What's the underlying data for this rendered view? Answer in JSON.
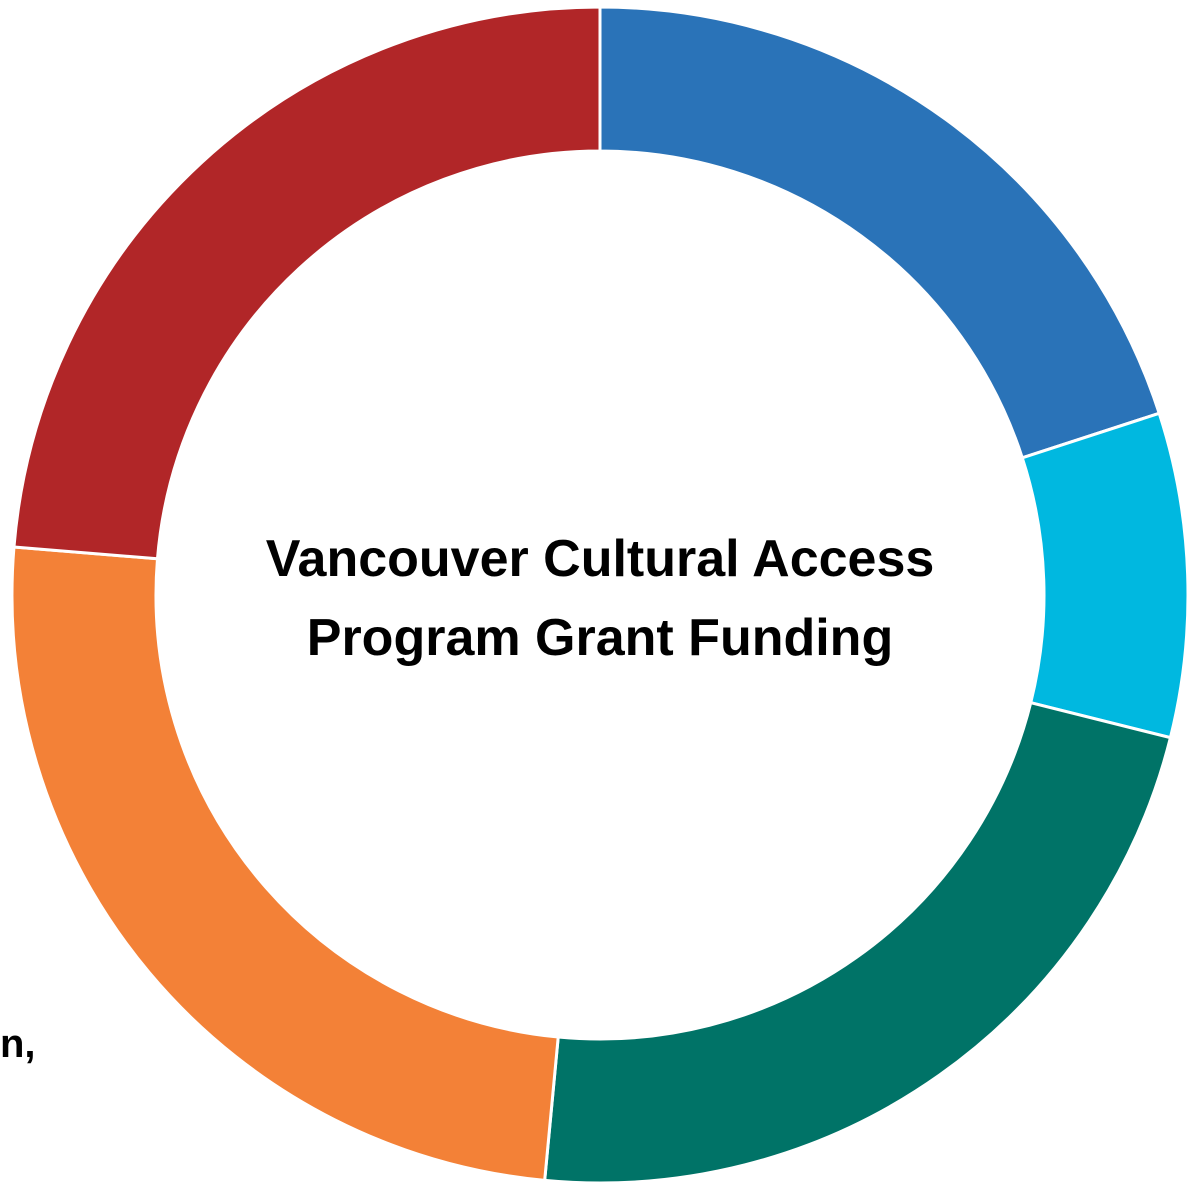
{
  "chart_data": {
    "type": "pie",
    "variant": "donut",
    "title": "Vancouver Cultural Access Program Grant Funding",
    "title_lines": [
      "Vancouver Cultural Access",
      "Program Grant Funding"
    ],
    "categories": [
      "",
      "",
      "",
      "",
      ""
    ],
    "values": [
      20.0,
      8.9,
      22.6,
      24.8,
      23.7
    ],
    "colors": [
      "#2A73B8",
      "#00B8E0",
      "#007367",
      "#F38137",
      "#B12628"
    ],
    "start_angle_deg": 0,
    "direction": "clockwise",
    "legend": "none",
    "annotations": [
      {
        "text": "n,",
        "position": "lower-left"
      }
    ]
  }
}
